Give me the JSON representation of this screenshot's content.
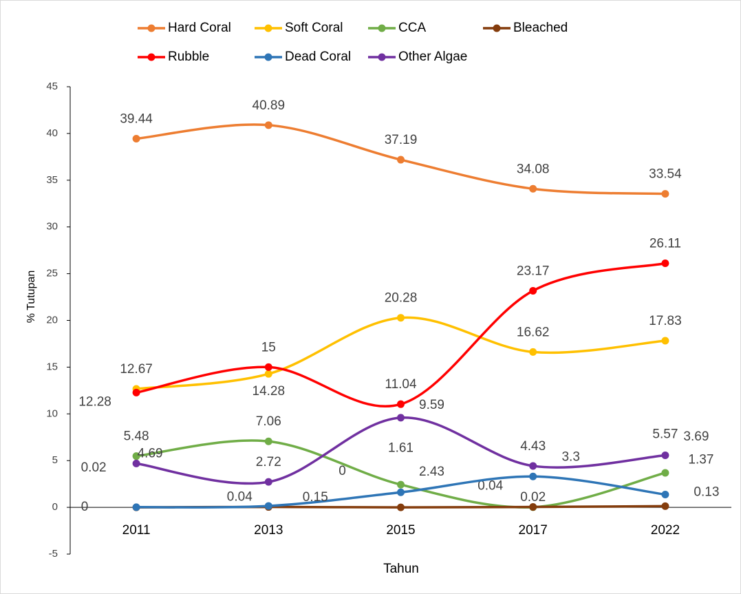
{
  "chart_data": {
    "type": "line",
    "x_label": "Tahun",
    "y_label": "% Tutupan",
    "categories": [
      "2011",
      "2013",
      "2015",
      "2017",
      "2022"
    ],
    "series": [
      {
        "name": "Hard Coral",
        "color": "#ED7D31",
        "values": [
          39.44,
          40.89,
          37.19,
          34.08,
          33.54
        ]
      },
      {
        "name": "Soft Coral",
        "color": "#FFC000",
        "values": [
          12.67,
          14.28,
          20.28,
          16.62,
          17.83
        ]
      },
      {
        "name": "CCA",
        "color": "#70AD47",
        "values": [
          5.48,
          7.06,
          2.43,
          0.02,
          3.69
        ]
      },
      {
        "name": "Bleached",
        "color": "#843C0C",
        "values": [
          0,
          0.04,
          0,
          0.04,
          0.13
        ]
      },
      {
        "name": "Rubble",
        "color": "#FF0000",
        "values": [
          12.28,
          15,
          11.04,
          23.17,
          26.11
        ]
      },
      {
        "name": "Dead Coral",
        "color": "#2E75B6",
        "values": [
          0.02,
          0.15,
          1.61,
          3.3,
          1.37
        ]
      },
      {
        "name": "Other Algae",
        "color": "#7030A0",
        "values": [
          4.69,
          2.72,
          9.59,
          4.43,
          5.57
        ]
      }
    ],
    "ylim": [
      -5,
      45
    ],
    "yticks": [
      -5,
      0,
      5,
      10,
      15,
      20,
      25,
      30,
      35,
      40,
      45
    ]
  }
}
